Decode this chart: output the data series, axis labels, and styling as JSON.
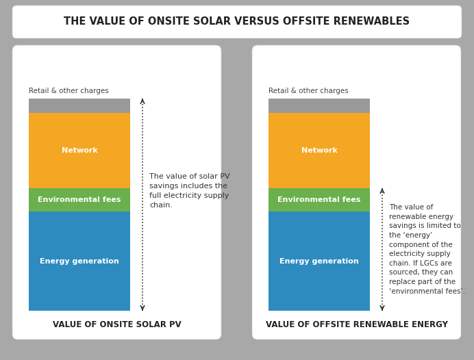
{
  "title": "THE VALUE OF ONSITE SOLAR VERSUS OFFSITE RENEWABLES",
  "bg_color": "#a8a8a8",
  "panel_color": "#ffffff",
  "panel_edge_color": "#dddddd",
  "title_bg": "#ffffff",
  "segments": [
    {
      "label": "Energy generation",
      "value": 42,
      "color": "#2e8bc0"
    },
    {
      "label": "Environmental fees",
      "value": 10,
      "color": "#6ab04c"
    },
    {
      "label": "Network",
      "value": 32,
      "color": "#f5a623"
    },
    {
      "label": "Retail & other charges",
      "value": 6,
      "color": "#999999"
    }
  ],
  "left_title": "VALUE OF ONSITE SOLAR PV",
  "right_title": "VALUE OF OFFSITE RENEWABLE ENERGY",
  "left_annotation": "The value of solar PV\nsavings includes the\nfull electricity supply\nchain.",
  "right_annotation": "The value of\nrenewable energy\nsavings is limited to\nthe ‘energy’\ncomponent of the\nelectricity supply\nchain. If LGCs are\nsourced, they can\nreplace part of the\n‘environmental fees’.",
  "retail_label": "Retail & other charges",
  "text_color_white": "#ffffff",
  "text_color_dark": "#333333",
  "arrow_color": "#333333"
}
